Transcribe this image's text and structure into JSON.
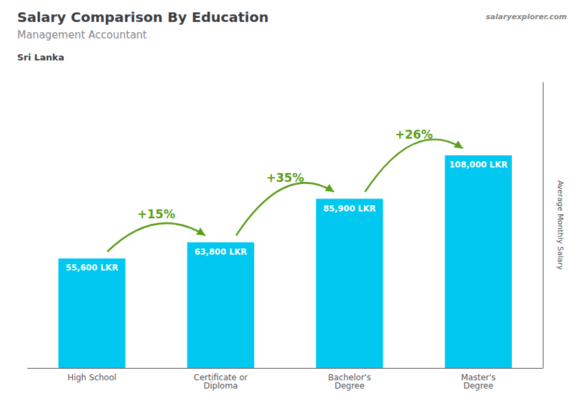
{
  "chart_data": {
    "type": "bar",
    "title": "Salary Comparison By Education",
    "subtitle": "Management Accountant",
    "country": "Sri Lanka",
    "watermark": "salaryexplorer.com",
    "ylabel": "Average Monthly Salary",
    "categories": [
      "High School",
      "Certificate or\nDiploma",
      "Bachelor's\nDegree",
      "Master's\nDegree"
    ],
    "values": [
      55600,
      63800,
      85900,
      108000
    ],
    "value_labels": [
      "55,600 LKR",
      "63,800 LKR",
      "85,900 LKR",
      "108,000 LKR"
    ],
    "data_labels": true,
    "color": "#00c8f0",
    "ylim": [
      0,
      145000
    ],
    "yticks": [],
    "tick_labels": "x",
    "grid": false,
    "annotations": [
      "+15%",
      "+35%",
      "+26%"
    ]
  }
}
